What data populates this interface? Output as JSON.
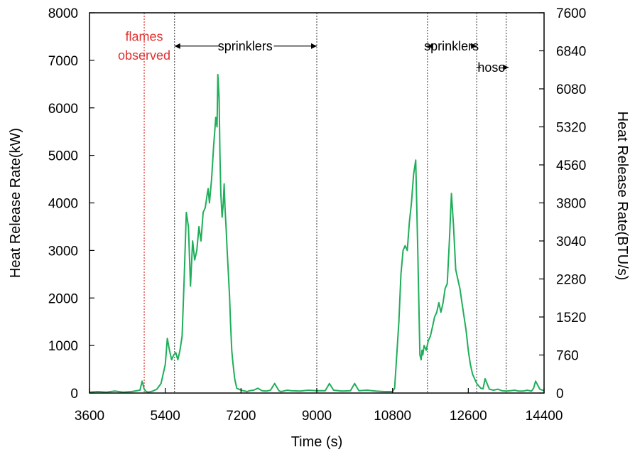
{
  "chart_data": {
    "type": "line",
    "title": "",
    "xlabel": "Time (s)",
    "ylabel": "Heat Release Rate(kW)",
    "y2label": "Heat Release Rate(BTU/s)",
    "xlim": [
      3600,
      14400
    ],
    "ylim": [
      0,
      8000
    ],
    "y2lim": [
      0,
      7600
    ],
    "x_ticks": [
      3600,
      5400,
      7200,
      9000,
      10800,
      12600,
      14400
    ],
    "y_ticks": [
      0,
      1000,
      2000,
      3000,
      4000,
      5000,
      6000,
      7000,
      8000
    ],
    "y2_ticks": [
      0,
      760,
      1520,
      2280,
      3040,
      3800,
      4560,
      5320,
      6080,
      6840,
      7600
    ],
    "grid": false,
    "legend": "none",
    "series_color": "#1fae5a",
    "marker_color": "#555555",
    "flames_color": "#e03030",
    "series": [
      {
        "x": [
          3600,
          3800,
          4000,
          4200,
          4400,
          4600,
          4800,
          4850,
          4900,
          4950,
          5000,
          5100,
          5200,
          5300,
          5350,
          5400,
          5450,
          5500,
          5550,
          5600,
          5650,
          5700,
          5750,
          5800,
          5850,
          5900,
          5950,
          6000,
          6050,
          6100,
          6150,
          6200,
          6250,
          6300,
          6350,
          6400,
          6420,
          6450,
          6500,
          6550,
          6600,
          6630,
          6650,
          6680,
          6700,
          6720,
          6750,
          6780,
          6800,
          6820,
          6850,
          6870,
          6900,
          6930,
          6950,
          6980,
          7000,
          7050,
          7100,
          7150,
          7200,
          7250,
          7300,
          7350,
          7400,
          7500,
          7600,
          7700,
          7800,
          7900,
          8000,
          8100,
          8150,
          8200,
          8300,
          8400,
          8600,
          8800,
          9000,
          9200,
          9300,
          9400,
          9600,
          9800,
          9900,
          10000,
          10200,
          10400,
          10600,
          10800,
          10850,
          10900,
          10950,
          11000,
          11050,
          11100,
          11150,
          11200,
          11250,
          11300,
          11350,
          11400,
          11450,
          11480,
          11500,
          11520,
          11550,
          11600,
          11650,
          11700,
          11750,
          11800,
          11850,
          11900,
          11950,
          12000,
          12050,
          12100,
          12150,
          12200,
          12250,
          12300,
          12350,
          12400,
          12450,
          12500,
          12550,
          12600,
          12650,
          12700,
          12750,
          12800,
          12850,
          12900,
          12950,
          13000,
          13100,
          13200,
          13300,
          13400,
          13500,
          13600,
          13700,
          13800,
          13900,
          14000,
          14100,
          14150,
          14200,
          14300,
          14400
        ],
        "y": [
          20,
          30,
          20,
          40,
          20,
          30,
          60,
          250,
          80,
          30,
          20,
          40,
          80,
          200,
          400,
          600,
          1150,
          900,
          700,
          800,
          850,
          700,
          900,
          1200,
          2400,
          3800,
          3500,
          2250,
          3200,
          2800,
          3000,
          3500,
          3200,
          3800,
          3900,
          4200,
          4300,
          4000,
          4500,
          5200,
          5800,
          5600,
          6700,
          6200,
          5000,
          4200,
          3700,
          4000,
          4400,
          3900,
          3400,
          3000,
          2500,
          2000,
          1500,
          900,
          700,
          300,
          100,
          80,
          60,
          50,
          40,
          30,
          50,
          60,
          100,
          50,
          40,
          60,
          200,
          50,
          30,
          40,
          60,
          50,
          40,
          60,
          50,
          50,
          200,
          60,
          40,
          50,
          200,
          50,
          60,
          40,
          30,
          30,
          100,
          800,
          1500,
          2500,
          3000,
          3100,
          3000,
          3600,
          4000,
          4600,
          4900,
          3000,
          800,
          700,
          900,
          800,
          1000,
          900,
          1100,
          1200,
          1400,
          1600,
          1700,
          1900,
          1700,
          1900,
          2200,
          2300,
          3200,
          4200,
          3500,
          2600,
          2400,
          2200,
          1900,
          1600,
          1300,
          900,
          600,
          400,
          300,
          200,
          150,
          100,
          90,
          300,
          80,
          60,
          80,
          50,
          40,
          50,
          60,
          40,
          40,
          60,
          40,
          100,
          250,
          80,
          50
        ],
        "name": ""
      }
    ],
    "vertical_markers": [
      4900,
      5620,
      9000,
      11630,
      12800,
      13500
    ],
    "annotations": [
      {
        "text": "flames",
        "x": 4900,
        "y": 7500,
        "color": "#e03030"
      },
      {
        "text": "observed",
        "x": 4900,
        "y": 7100,
        "color": "#e03030"
      },
      {
        "text": "sprinklers",
        "x": 7300,
        "y": 7300,
        "color": "#000000"
      },
      {
        "text": "sprinklers",
        "x": 12200,
        "y": 7300,
        "color": "#000000"
      },
      {
        "text": "hose",
        "x": 13150,
        "y": 6850,
        "color": "#000000"
      }
    ],
    "arrows": [
      {
        "x1": 5620,
        "x2": 6700,
        "y": 7300,
        "head": "left"
      },
      {
        "x1": 7980,
        "x2": 9000,
        "y": 7300,
        "head": "right"
      },
      {
        "x1": 11630,
        "x2": 11760,
        "y": 7300,
        "head": "left"
      },
      {
        "x1": 12660,
        "x2": 12800,
        "y": 7300,
        "head": "right"
      },
      {
        "x1": 12800,
        "x2": 12900,
        "y": 6850,
        "head": "none"
      },
      {
        "x1": 13450,
        "x2": 13560,
        "y": 6850,
        "head": "right"
      }
    ]
  }
}
